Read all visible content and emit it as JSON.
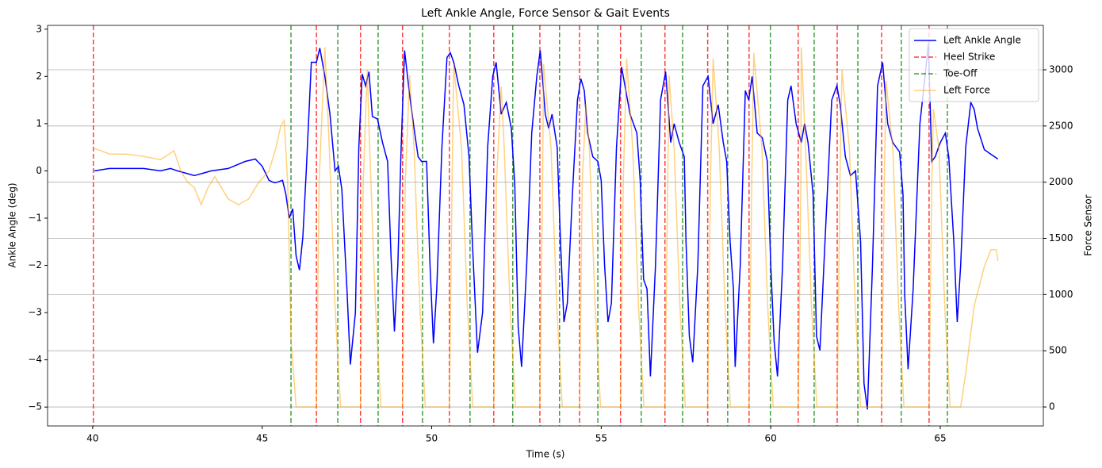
{
  "chart_data": {
    "type": "line",
    "title": "Left Ankle Angle, Force Sensor & Gait Events",
    "xlabel": "Time (s)",
    "ylabel": "Ankle Angle (deg)",
    "y2label": "Force Sensor",
    "xlim": [
      38.67,
      68.04
    ],
    "ylim": [
      -5.4,
      3.08
    ],
    "y2lim": [
      -169,
      3395
    ],
    "xticks": [
      40,
      45,
      50,
      55,
      60,
      65
    ],
    "yticks": [
      {
        "value": -5,
        "label": "−5"
      },
      {
        "value": -4,
        "label": "−4"
      },
      {
        "value": -3,
        "label": "−3"
      },
      {
        "value": -2,
        "label": "−2"
      },
      {
        "value": -1,
        "label": "−1"
      },
      0,
      1,
      2,
      3
    ],
    "y2ticks": [
      0,
      500,
      1000,
      1500,
      2000,
      2500,
      3000
    ],
    "grid": "y2",
    "legend": "upper right",
    "ycolor": "#0000ff",
    "y2color": "#ffa500",
    "series": [
      {
        "name": "Left Ankle Angle",
        "color": "#0000ff",
        "x": [
          40.05,
          40.5,
          41,
          41.5,
          42,
          42.3,
          42.5,
          43,
          43.5,
          44,
          44.5,
          44.8,
          45,
          45.2,
          45.35,
          45.4,
          45.6,
          45.7,
          45.8,
          45.9,
          46,
          46.1,
          46.2,
          46.3,
          46.45,
          46.6,
          46.7,
          46.85,
          47,
          47.15,
          47.25,
          47.35,
          47.5,
          47.6,
          47.75,
          47.85,
          47.95,
          48.05,
          48.15,
          48.25,
          48.4,
          48.55,
          48.7,
          48.8,
          48.9,
          49,
          49.1,
          49.2,
          49.35,
          49.5,
          49.6,
          49.7,
          49.85,
          49.95,
          50.05,
          50.15,
          50.3,
          50.45,
          50.55,
          50.65,
          50.8,
          50.95,
          51.1,
          51.2,
          51.35,
          51.5,
          51.65,
          51.8,
          51.9,
          52.05,
          52.2,
          52.35,
          52.45,
          52.55,
          52.65,
          52.8,
          52.95,
          53.1,
          53.2,
          53.35,
          53.45,
          53.55,
          53.7,
          53.8,
          53.9,
          54,
          54.15,
          54.3,
          54.4,
          54.5,
          54.6,
          54.75,
          54.9,
          55,
          55.1,
          55.2,
          55.3,
          55.45,
          55.6,
          55.7,
          55.85,
          56.05,
          56.15,
          56.25,
          56.35,
          56.45,
          56.6,
          56.75,
          56.9,
          57.05,
          57.15,
          57.3,
          57.45,
          57.5,
          57.6,
          57.7,
          57.85,
          58,
          58.15,
          58.3,
          58.45,
          58.6,
          58.7,
          58.8,
          58.9,
          58.95,
          59.1,
          59.25,
          59.35,
          59.45,
          59.6,
          59.75,
          59.9,
          60,
          60.1,
          60.2,
          60.35,
          60.5,
          60.6,
          60.75,
          60.9,
          61,
          61.1,
          61.25,
          61.35,
          61.45,
          61.6,
          61.8,
          61.95,
          62.05,
          62.2,
          62.35,
          62.5,
          62.65,
          62.75,
          62.85,
          63,
          63.15,
          63.3,
          63.45,
          63.6,
          63.8,
          63.9,
          63.95,
          64.05,
          64.2,
          64.4,
          64.55,
          64.65,
          64.75,
          64.85,
          65,
          65.15,
          65.25,
          65.4,
          65.5,
          65.6,
          65.75,
          65.9,
          66,
          66.1,
          66.3,
          66.5,
          66.7
        ],
        "values": [
          0,
          0.05,
          0.05,
          0.05,
          0,
          0.05,
          0,
          -0.1,
          0,
          0.05,
          0.2,
          0.25,
          0.1,
          -0.2,
          -0.25,
          -0.25,
          -0.2,
          -0.5,
          -1,
          -0.8,
          -1.8,
          -2.1,
          -1.4,
          0,
          2.3,
          2.3,
          2.6,
          2,
          1.2,
          0,
          0.1,
          -0.4,
          -2.5,
          -4.1,
          -3,
          0.5,
          2.05,
          1.8,
          2.1,
          1.15,
          1.1,
          0.6,
          0.2,
          -1.8,
          -3.4,
          -2,
          0.5,
          2.55,
          1.6,
          0.8,
          0.3,
          0.2,
          0.2,
          -2,
          -3.65,
          -2.5,
          0.5,
          2.4,
          2.5,
          2.3,
          1.8,
          1.4,
          0.3,
          -1.5,
          -3.85,
          -3,
          0.5,
          2,
          2.3,
          1.2,
          1.45,
          0.9,
          -0.3,
          -3.3,
          -4.15,
          -2,
          0.8,
          2,
          2.55,
          1.2,
          0.9,
          1.2,
          0.5,
          -1.5,
          -3.2,
          -2.8,
          -0.5,
          1.5,
          1.95,
          1.7,
          0.8,
          0.3,
          0.2,
          -0.2,
          -2,
          -3.2,
          -2.8,
          0.5,
          2.2,
          1.8,
          1.2,
          0.8,
          -0.2,
          -2.3,
          -2.5,
          -4.35,
          -2,
          1.5,
          2.1,
          0.6,
          1,
          0.6,
          0.3,
          -1.5,
          -3.5,
          -4.05,
          -2,
          1.8,
          2,
          1,
          1.4,
          0.6,
          0.2,
          -1.5,
          -2.5,
          -4.15,
          -2,
          1.7,
          1.5,
          2,
          0.8,
          0.7,
          0.2,
          -2,
          -3.6,
          -4.35,
          -2,
          1.5,
          1.8,
          1,
          0.6,
          1,
          0.6,
          -0.5,
          -3.5,
          -3.8,
          -1.5,
          1.5,
          1.8,
          1.4,
          0.3,
          -0.1,
          0,
          -1.5,
          -4.5,
          -5.05,
          -2,
          1.8,
          2.3,
          1,
          0.6,
          0.4,
          -0.5,
          -2.6,
          -4.2,
          -2.5,
          1,
          2,
          2.7,
          0.2,
          0.3,
          0.6,
          0.8,
          0.3,
          -1.5,
          -3.2,
          -2,
          0.5,
          1.45,
          1.3,
          0.9,
          0.45,
          0.35,
          0.25
        ]
      },
      {
        "name": "Left Force",
        "color": "#ffa500",
        "axis": "y2",
        "x": [
          40.05,
          40.5,
          41,
          41.5,
          42,
          42.4,
          42.6,
          42.8,
          43,
          43.2,
          43.4,
          43.6,
          43.8,
          44,
          44.3,
          44.6,
          44.9,
          45.2,
          45.4,
          45.55,
          45.65,
          45.75,
          45.85,
          46,
          46.6,
          46.68,
          46.85,
          46.98,
          47.15,
          47.31,
          47.9,
          47.98,
          48.1,
          48.17,
          48.34,
          48.5,
          49.14,
          49.22,
          49.35,
          49.48,
          49.65,
          49.81,
          50.52,
          50.6,
          50.65,
          50.88,
          51.05,
          51.21,
          51.83,
          51.91,
          52.05,
          52.14,
          52.31,
          52.47,
          53.19,
          53.27,
          53.3,
          53.52,
          53.69,
          53.85,
          54.36,
          54.44,
          54.55,
          54.65,
          54.82,
          54.98,
          55.57,
          55.65,
          55.75,
          55.93,
          56.1,
          56.26,
          56.88,
          56.96,
          57,
          57.15,
          57.32,
          57.48,
          58.14,
          58.22,
          58.3,
          58.48,
          58.65,
          58.81,
          59.36,
          59.44,
          59.5,
          59.74,
          59.91,
          60.07,
          60.81,
          60.89,
          60.9,
          61.03,
          61.2,
          61.36,
          61.96,
          62.04,
          62.1,
          62.32,
          62.49,
          62.65,
          63.27,
          63.35,
          63.4,
          63.6,
          63.77,
          63.93,
          64.67,
          64.75,
          64.8,
          64.96,
          65.13,
          65.29,
          65.6,
          65.75,
          66,
          66.3,
          66.5,
          66.65,
          66.7
        ],
        "values": [
          2300,
          2250,
          2250,
          2230,
          2200,
          2280,
          2100,
          2000,
          1950,
          1800,
          1950,
          2050,
          1950,
          1850,
          1800,
          1850,
          2000,
          2100,
          2300,
          2500,
          2550,
          2000,
          600,
          0,
          0,
          2000,
          3200,
          2300,
          900,
          0,
          0,
          2000,
          3000,
          2300,
          900,
          0,
          0,
          2000,
          2950,
          2300,
          900,
          0,
          0,
          2000,
          3050,
          2300,
          900,
          0,
          0,
          2000,
          2850,
          2300,
          900,
          0,
          0,
          2000,
          3050,
          2300,
          900,
          0,
          0,
          2000,
          2700,
          2300,
          900,
          0,
          0,
          2000,
          3100,
          2300,
          900,
          0,
          0,
          2000,
          2950,
          2300,
          900,
          0,
          0,
          2000,
          3100,
          2300,
          900,
          0,
          0,
          2000,
          3150,
          2300,
          900,
          0,
          0,
          2000,
          3200,
          2300,
          900,
          0,
          0,
          2000,
          3000,
          2300,
          900,
          0,
          0,
          2000,
          2900,
          2300,
          900,
          0,
          0,
          2000,
          2650,
          2300,
          900,
          0,
          0,
          300,
          900,
          1250,
          1400,
          1400,
          1300
        ]
      }
    ],
    "events": [
      {
        "name": "Heel Strike",
        "color": "#ff0000",
        "x": [
          40.02,
          46.6,
          47.9,
          49.14,
          50.52,
          51.83,
          53.19,
          54.36,
          55.57,
          56.88,
          58.14,
          59.36,
          60.81,
          61.96,
          63.27,
          64.67
        ]
      },
      {
        "name": "Toe-Off",
        "color": "#008000",
        "x": [
          45.85,
          47.23,
          48.42,
          49.73,
          51.13,
          52.39,
          53.77,
          54.9,
          56.18,
          57.4,
          58.73,
          59.99,
          61.28,
          62.57,
          63.85,
          65.21
        ]
      }
    ]
  }
}
